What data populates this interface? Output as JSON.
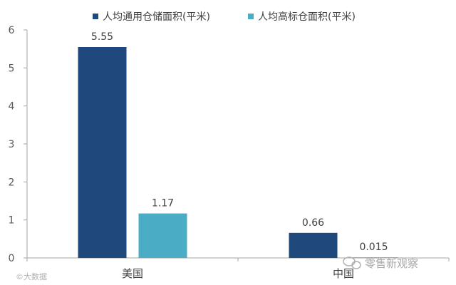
{
  "chart_data": {
    "type": "bar",
    "categories": [
      "美国",
      "中国"
    ],
    "series": [
      {
        "name": "人均通用仓储面积(平米)",
        "values": [
          5.55,
          0.66
        ],
        "labels": [
          "5.55",
          "0.66"
        ],
        "color": "#1f497d"
      },
      {
        "name": "人均高标仓面积(平米)",
        "values": [
          1.17,
          0.015
        ],
        "labels": [
          "1.17",
          "0.015"
        ],
        "color": "#4bacc6"
      }
    ],
    "ylim": [
      0,
      6
    ],
    "yticks": [
      "0",
      "1",
      "2",
      "3",
      "4",
      "5",
      "6"
    ],
    "title": "",
    "xlabel": "",
    "ylabel": "",
    "legend": "top",
    "grid": false
  },
  "watermarks": {
    "left": "©大数据",
    "right": "零售新观察"
  }
}
